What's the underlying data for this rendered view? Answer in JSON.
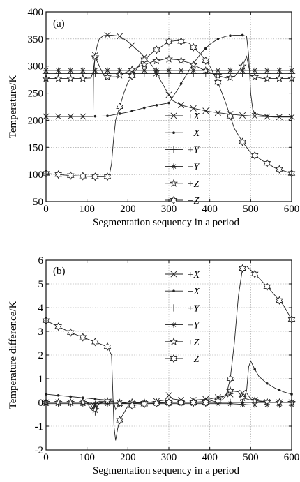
{
  "chart_data": [
    {
      "type": "line",
      "panel_label": "(a)",
      "xlabel": "Segmentation sequency in a period",
      "ylabel": "Temperature/K",
      "xlim": [
        0,
        600
      ],
      "ylim": [
        50,
        400
      ],
      "xticks": [
        0,
        100,
        200,
        300,
        400,
        500,
        600
      ],
      "yticks": [
        50,
        100,
        150,
        200,
        250,
        300,
        350,
        400
      ],
      "grid": true,
      "legend_position": "center",
      "series": [
        {
          "name": "+X",
          "marker": "x",
          "x": [
            0,
            30,
            60,
            90,
            115,
            116,
            120,
            125,
            130,
            140,
            150,
            160,
            180,
            200,
            230,
            260,
            290,
            300,
            310,
            330,
            360,
            400,
            440,
            480,
            500,
            530,
            560,
            600
          ],
          "y": [
            207,
            207,
            207,
            207,
            207,
            280,
            320,
            338,
            350,
            356,
            357,
            357,
            355,
            345,
            325,
            300,
            260,
            247,
            236,
            228,
            222,
            216,
            212,
            209,
            208,
            207,
            206,
            206
          ]
        },
        {
          "name": "−X",
          "marker": "dot",
          "x": [
            0,
            50,
            100,
            150,
            200,
            250,
            300,
            320,
            340,
            360,
            380,
            400,
            420,
            440,
            460,
            480,
            490,
            495,
            500,
            505,
            510,
            520,
            550,
            600
          ],
          "y": [
            207,
            207,
            207,
            208,
            215,
            225,
            232,
            255,
            280,
            305,
            325,
            340,
            350,
            355,
            357,
            357,
            355,
            320,
            250,
            220,
            213,
            210,
            207,
            207
          ]
        },
        {
          "name": "+Y",
          "marker": "plus",
          "x": [
            0,
            50,
            100,
            150,
            200,
            250,
            300,
            350,
            400,
            450,
            500,
            550,
            600
          ],
          "y": [
            286,
            286,
            286,
            286,
            286,
            286,
            286,
            286,
            286,
            286,
            286,
            286,
            286
          ]
        },
        {
          "name": "−Y",
          "marker": "star",
          "x": [
            0,
            30,
            60,
            90,
            120,
            150,
            180,
            210,
            240,
            270,
            300,
            330,
            360,
            390,
            420,
            450,
            480,
            510,
            540,
            570,
            600
          ],
          "y": [
            292,
            292,
            292,
            292,
            292,
            292,
            292,
            292,
            292,
            292,
            292,
            292,
            292,
            292,
            292,
            292,
            292,
            292,
            292,
            292,
            292
          ]
        },
        {
          "name": "+Z",
          "marker": "pentagram",
          "x": [
            0,
            30,
            60,
            90,
            110,
            115,
            120,
            130,
            140,
            150,
            170,
            200,
            230,
            260,
            290,
            300,
            320,
            350,
            380,
            410,
            440,
            460,
            480,
            490,
            495,
            500,
            530,
            560,
            600
          ],
          "y": [
            277,
            277,
            277,
            277,
            278,
            290,
            317,
            300,
            285,
            280,
            280,
            290,
            300,
            308,
            313,
            313,
            312,
            306,
            295,
            285,
            278,
            280,
            300,
            318,
            300,
            282,
            277,
            277,
            277
          ]
        },
        {
          "name": "−Z",
          "marker": "hexagram",
          "x": [
            0,
            30,
            60,
            90,
            120,
            150,
            155,
            160,
            165,
            170,
            180,
            190,
            200,
            230,
            260,
            290,
            300,
            320,
            350,
            380,
            400,
            420,
            440,
            460,
            480,
            500,
            530,
            560,
            600
          ],
          "y": [
            102,
            100,
            98,
            97,
            96,
            96,
            100,
            120,
            165,
            200,
            225,
            250,
            270,
            305,
            325,
            340,
            345,
            347,
            342,
            320,
            300,
            270,
            230,
            185,
            160,
            140,
            125,
            112,
            102
          ]
        }
      ]
    },
    {
      "type": "line",
      "panel_label": "(b)",
      "xlabel": "Segmentation sequency in a period",
      "ylabel": "Temperature difference/K",
      "xlim": [
        0,
        600
      ],
      "ylim": [
        -2,
        6
      ],
      "xticks": [
        0,
        100,
        200,
        300,
        400,
        500,
        600
      ],
      "yticks": [
        -2,
        -1,
        0,
        1,
        2,
        3,
        4,
        5,
        6
      ],
      "grid": true,
      "legend_position": "top-right",
      "series": [
        {
          "name": "+X",
          "marker": "x",
          "x": [
            0,
            50,
            100,
            110,
            115,
            120,
            130,
            150,
            160,
            170,
            200,
            250,
            290,
            300,
            310,
            330,
            360,
            400,
            430,
            460,
            490,
            500,
            520,
            550,
            600
          ],
          "y": [
            0,
            0,
            0,
            -0.1,
            -0.3,
            -0.1,
            0.05,
            0.05,
            0.05,
            0,
            -0.05,
            0,
            0.1,
            0.3,
            0.15,
            0.1,
            0.1,
            0.15,
            0.25,
            0.4,
            0.4,
            0.15,
            0.05,
            0,
            0
          ]
        },
        {
          "name": "−X",
          "marker": "dot",
          "x": [
            0,
            30,
            60,
            90,
            120,
            150,
            160,
            170,
            200,
            250,
            300,
            350,
            400,
            450,
            480,
            490,
            495,
            500,
            510,
            520,
            540,
            560,
            580,
            600
          ],
          "y": [
            0.35,
            0.3,
            0.25,
            0.2,
            0.15,
            0.1,
            0.05,
            0,
            0,
            0,
            0,
            0,
            0,
            0,
            0,
            0.5,
            1.5,
            1.75,
            1.4,
            1.1,
            0.8,
            0.6,
            0.45,
            0.35
          ]
        },
        {
          "name": "+Y",
          "marker": "plus",
          "x": [
            0,
            100,
            110,
            120,
            130,
            150,
            200,
            300,
            400,
            500,
            600
          ],
          "y": [
            0,
            0,
            -0.3,
            -0.4,
            0,
            0,
            0,
            0,
            0,
            0,
            0
          ]
        },
        {
          "name": "−Y",
          "marker": "star",
          "x": [
            0,
            50,
            100,
            150,
            200,
            250,
            300,
            350,
            400,
            450,
            500,
            550,
            600
          ],
          "y": [
            -0.05,
            -0.05,
            -0.05,
            -0.05,
            -0.05,
            -0.05,
            -0.05,
            -0.05,
            -0.05,
            -0.05,
            -0.1,
            -0.1,
            -0.1
          ]
        },
        {
          "name": "+Z",
          "marker": "pentagram",
          "x": [
            0,
            30,
            60,
            90,
            110,
            115,
            120,
            130,
            150,
            160,
            165,
            170,
            180,
            200,
            250,
            300,
            350,
            400,
            430,
            450,
            470,
            480,
            500,
            530,
            560,
            600
          ],
          "y": [
            0,
            0,
            0,
            0,
            0,
            -0.1,
            -0.3,
            -0.05,
            0.05,
            0.15,
            0.05,
            -0.3,
            -0.05,
            0,
            0,
            0,
            0,
            0.05,
            0.2,
            0.5,
            0.45,
            0.2,
            0.1,
            0.05,
            0,
            0
          ]
        },
        {
          "name": "−Z",
          "marker": "hexagram",
          "x": [
            0,
            30,
            60,
            90,
            120,
            150,
            160,
            163,
            166,
            170,
            175,
            180,
            200,
            250,
            300,
            350,
            400,
            430,
            440,
            450,
            460,
            470,
            480,
            490,
            520,
            550,
            580,
            600
          ],
          "y": [
            3.45,
            3.2,
            2.95,
            2.75,
            2.55,
            2.35,
            2.0,
            0.5,
            -1.0,
            -1.6,
            -1.1,
            -0.75,
            -0.15,
            -0.05,
            0,
            0,
            0,
            0.1,
            0.3,
            1.0,
            2.5,
            4.5,
            5.65,
            5.75,
            5.25,
            4.7,
            4.1,
            3.5
          ]
        }
      ]
    }
  ]
}
